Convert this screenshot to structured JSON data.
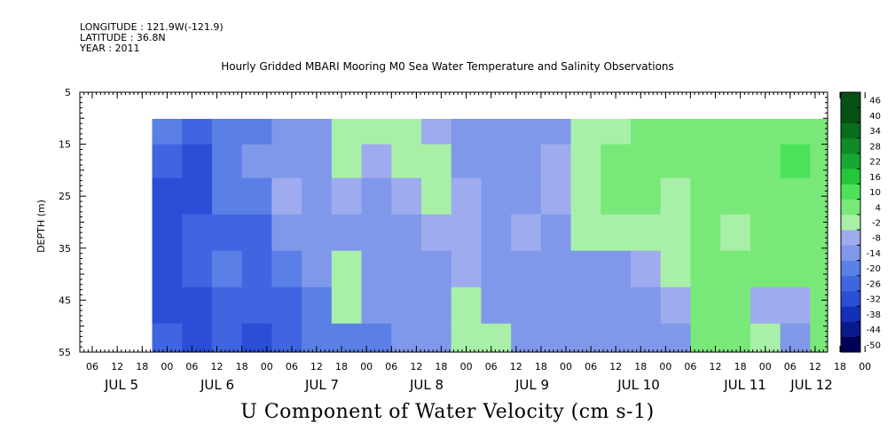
{
  "header": {
    "longitude": "LONGITUDE : 121.9W(-121.9)",
    "latitude": "LATITUDE : 36.8N",
    "year": "YEAR : 2011"
  },
  "chart_data": {
    "type": "heatmap",
    "title": "Hourly Gridded MBARI Mooring M0 Sea Water Temperature and Salinity Observations",
    "xlabel": "U Component of Water Velocity (cm s-1)",
    "ylabel": "DEPTH (m)",
    "ylim": [
      55,
      5
    ],
    "y_ticks": [
      5,
      15,
      25,
      35,
      45,
      55
    ],
    "data_depth_range": [
      10,
      55
    ],
    "x_hour_ticks": [
      "06",
      "12",
      "18",
      "00",
      "06",
      "12",
      "18",
      "00",
      "06",
      "12",
      "18",
      "00",
      "06",
      "12",
      "18",
      "00",
      "06",
      "12",
      "18",
      "00",
      "06",
      "12",
      "18",
      "00",
      "06",
      "12",
      "18",
      "00",
      "06",
      "12",
      "18",
      "00"
    ],
    "x_day_labels": [
      "JUL  5",
      "JUL  6",
      "JUL  7",
      "JUL  8",
      "JUL  9",
      "JUL 10",
      "JUL 11",
      "JUL 12"
    ],
    "colorbar": {
      "levels": [
        -50,
        -44,
        -38,
        -32,
        -26,
        -20,
        -14,
        -8,
        -2,
        4,
        10,
        16,
        22,
        28,
        34,
        40,
        46
      ],
      "labels": [
        "46",
        "40",
        "34",
        "28",
        "22",
        "16",
        "10",
        "4",
        "-2",
        "-8",
        "-14",
        "-20",
        "-26",
        "-32",
        "-38",
        "-44",
        "-50"
      ]
    },
    "columns": [
      {
        "day": 5.5,
        "values": [
          -14,
          -20,
          -26,
          -26,
          -26,
          -26,
          -20
        ]
      },
      {
        "day": 5.8,
        "values": [
          -20,
          -26,
          -26,
          -20,
          -20,
          -26,
          -26
        ]
      },
      {
        "day": 6.1,
        "values": [
          -14,
          -14,
          -14,
          -20,
          -14,
          -20,
          -20
        ]
      },
      {
        "day": 6.4,
        "values": [
          -14,
          -8,
          -14,
          -20,
          -20,
          -20,
          -26
        ]
      },
      {
        "day": 6.7,
        "values": [
          -8,
          -8,
          -2,
          -8,
          -14,
          -20,
          -20
        ]
      },
      {
        "day": 7.0,
        "values": [
          -8,
          -8,
          -8,
          -8,
          -8,
          -14,
          -14
        ]
      },
      {
        "day": 7.3,
        "values": [
          4,
          4,
          -2,
          -8,
          4,
          4,
          -14
        ]
      },
      {
        "day": 7.6,
        "values": [
          4,
          -2,
          -8,
          -8,
          -8,
          -8,
          -14
        ]
      },
      {
        "day": 7.9,
        "values": [
          4,
          4,
          -2,
          -8,
          -8,
          -8,
          -8
        ]
      },
      {
        "day": 8.2,
        "values": [
          -2,
          4,
          4,
          -2,
          -8,
          -8,
          -8
        ]
      },
      {
        "day": 8.5,
        "values": [
          -8,
          -8,
          -2,
          -2,
          -2,
          4,
          4
        ]
      },
      {
        "day": 8.8,
        "values": [
          -8,
          -8,
          -8,
          -8,
          -8,
          -8,
          4
        ]
      },
      {
        "day": 9.1,
        "values": [
          -8,
          -8,
          -8,
          -2,
          -8,
          -8,
          -8
        ]
      },
      {
        "day": 9.4,
        "values": [
          -8,
          -2,
          -2,
          -8,
          -8,
          -8,
          -8
        ]
      },
      {
        "day": 9.7,
        "values": [
          4,
          4,
          4,
          4,
          -8,
          -8,
          -8
        ]
      },
      {
        "day": 10.0,
        "values": [
          4,
          10,
          10,
          4,
          -8,
          -8,
          -8
        ]
      },
      {
        "day": 10.3,
        "values": [
          10,
          10,
          10,
          4,
          -2,
          -8,
          -8
        ]
      },
      {
        "day": 10.6,
        "values": [
          10,
          10,
          4,
          4,
          4,
          -2,
          -8
        ]
      },
      {
        "day": 10.9,
        "values": [
          10,
          10,
          10,
          10,
          10,
          10,
          10
        ]
      },
      {
        "day": 11.2,
        "values": [
          10,
          10,
          10,
          4,
          10,
          10,
          10
        ]
      },
      {
        "day": 11.5,
        "values": [
          10,
          10,
          10,
          10,
          10,
          -2,
          4
        ]
      },
      {
        "day": 11.8,
        "values": [
          10,
          16,
          10,
          10,
          10,
          -2,
          -8
        ]
      },
      {
        "day": 12.1,
        "values": [
          10,
          10,
          10,
          10,
          10,
          10,
          10
        ]
      }
    ],
    "column_depths": [
      12,
      18,
      25,
      32,
      39,
      46,
      53
    ],
    "grid": false,
    "legend": "right colorbar"
  }
}
